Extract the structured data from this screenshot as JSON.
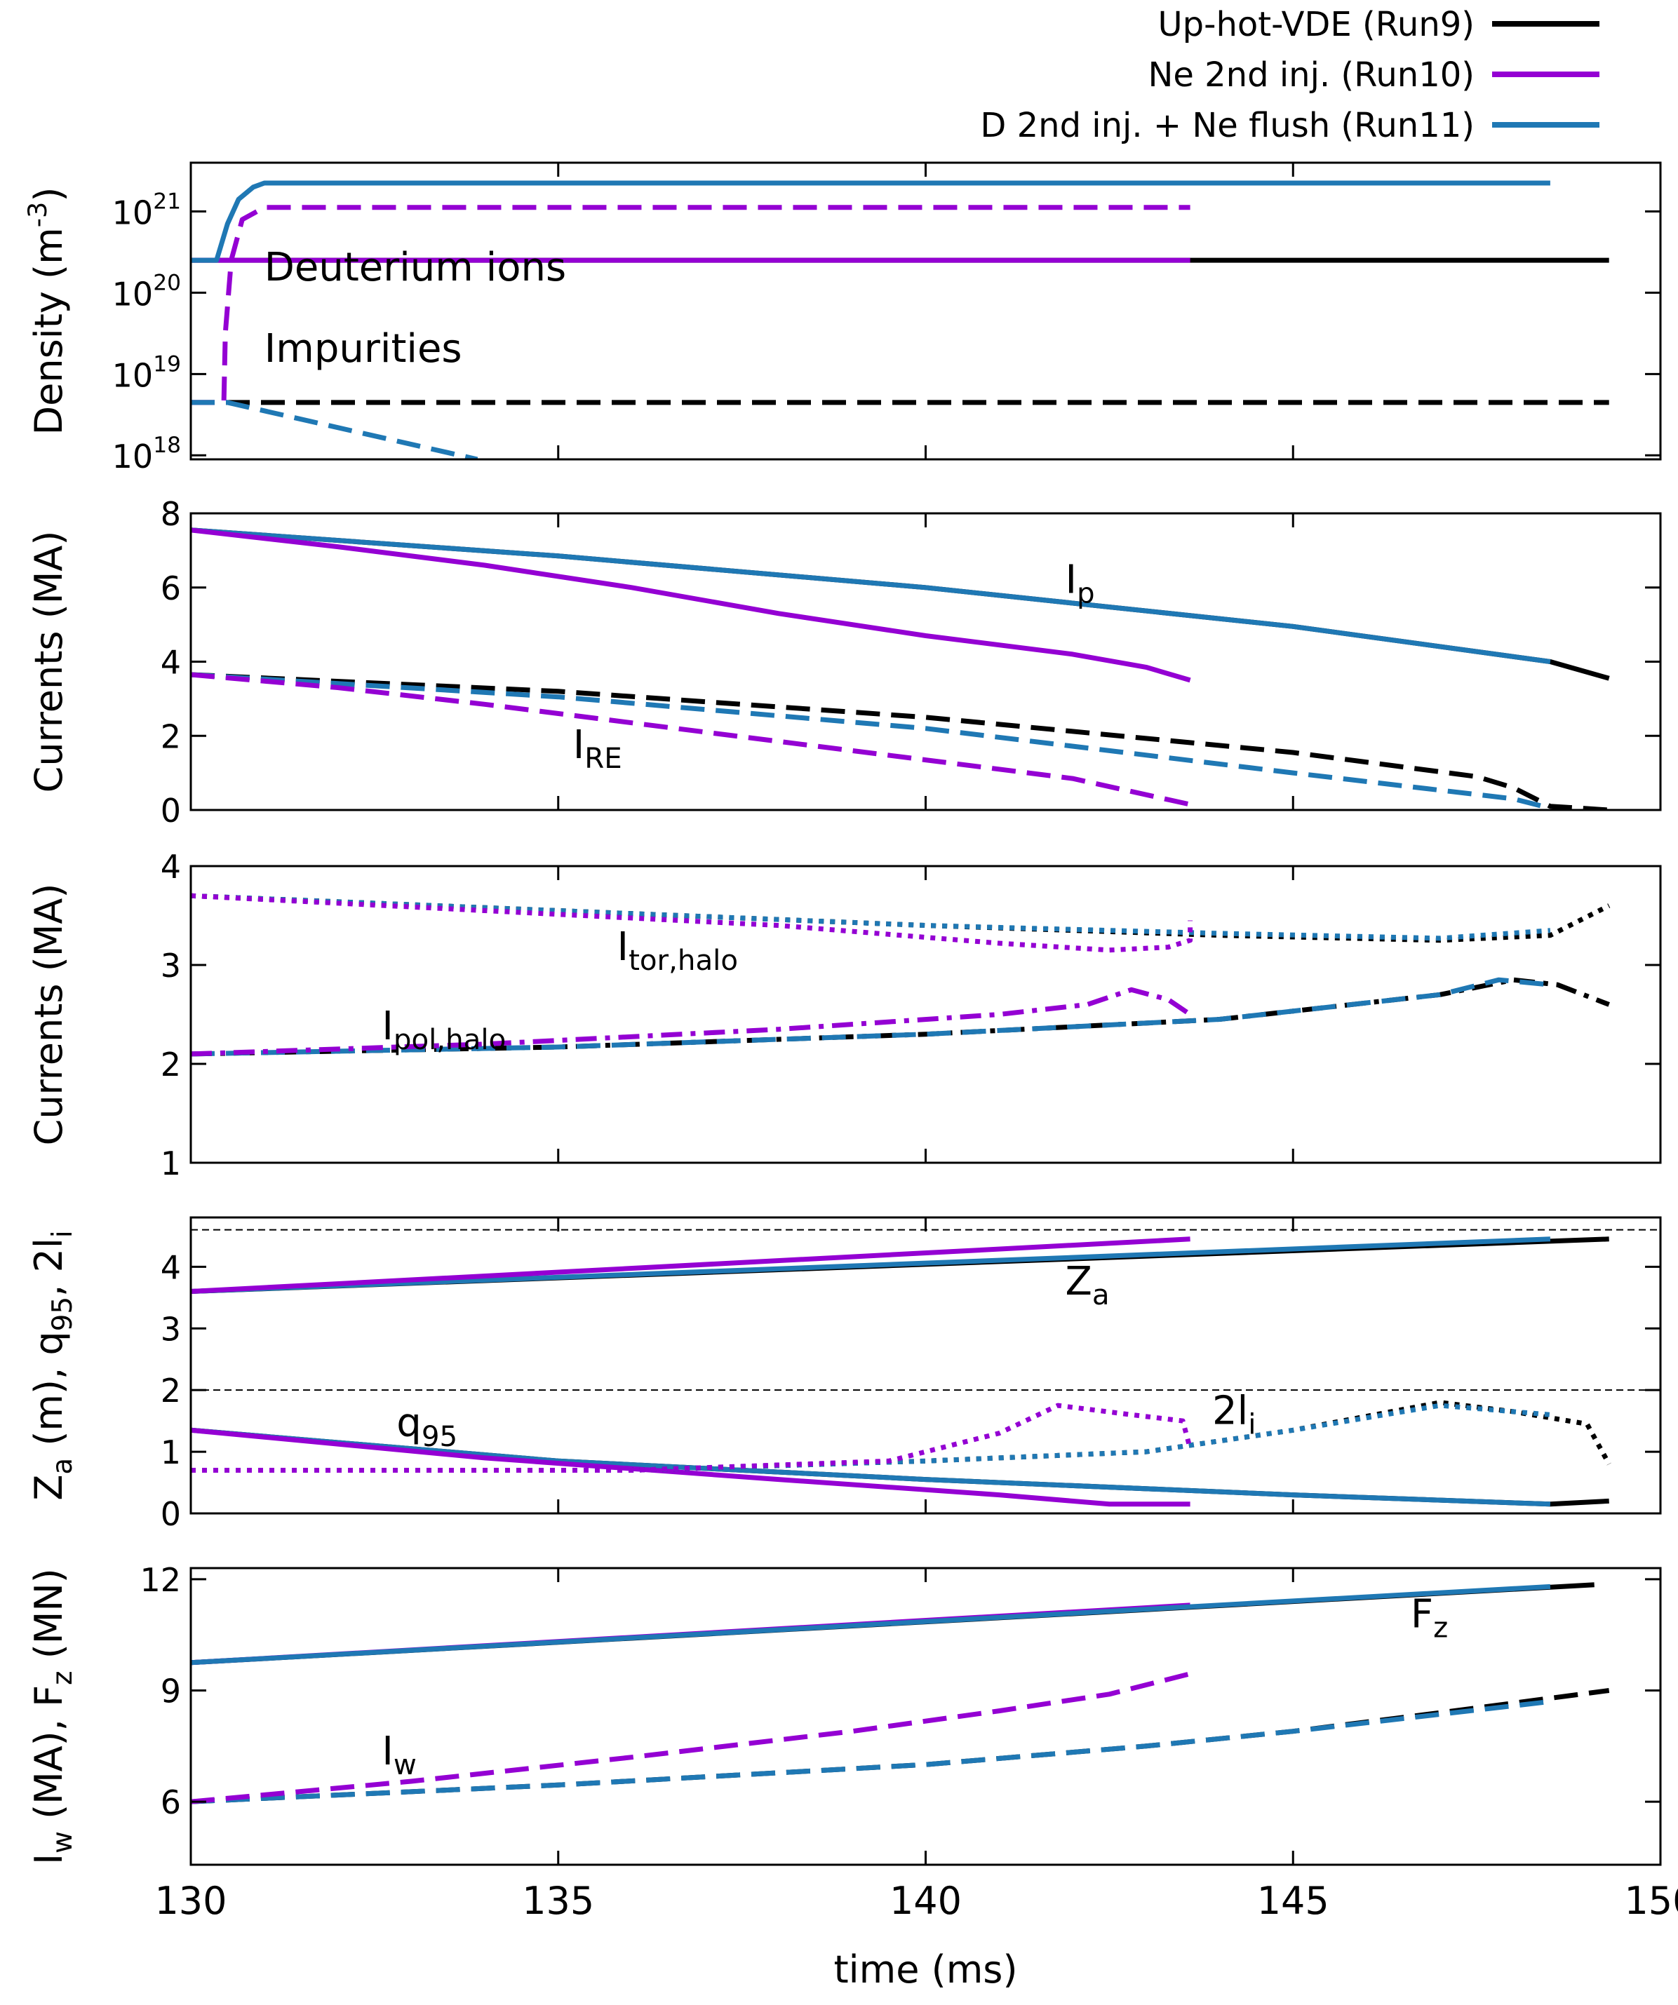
{
  "chart_data": {
    "type": "line",
    "xlabel": "time (ms)",
    "xlim": [
      130,
      150
    ],
    "xticks": [
      130,
      135,
      140,
      145,
      150
    ],
    "colors": {
      "Run9": "#000000",
      "Run10": "#9400d3",
      "Run11": "#1f78b4"
    },
    "legend": {
      "placement": "top-right",
      "entries": [
        {
          "label": "Up-hot-VDE (Run9)",
          "color": "#000000"
        },
        {
          "label": "Ne 2nd inj. (Run10)",
          "color": "#9400d3"
        },
        {
          "label": "D 2nd inj. + Ne flush (Run11)",
          "color": "#1f78b4"
        }
      ]
    },
    "panels": [
      {
        "id": "density",
        "ylabel": "Density (m",
        "ylabel_sup": "-3",
        "ylabel_end": ")",
        "yscale": "log",
        "ylim": [
          17.95,
          21.6
        ],
        "yticks": [
          {
            "v": 18,
            "base": "10",
            "exp": "18"
          },
          {
            "v": 19,
            "base": "10",
            "exp": "19"
          },
          {
            "v": 20,
            "base": "10",
            "exp": "20"
          },
          {
            "v": 21,
            "base": "10",
            "exp": "21"
          }
        ],
        "annotations": [
          {
            "text": "Deuterium ions",
            "x": 131.0,
            "y": 20.15
          },
          {
            "text": "Impurities",
            "x": 131.0,
            "y": 19.15
          }
        ],
        "series": [
          {
            "run": "Run9",
            "style": "solid",
            "x": [
              130,
              149.3
            ],
            "y": [
              20.4,
              20.4
            ]
          },
          {
            "run": "Run9",
            "style": "dashed",
            "x": [
              130,
              149.3
            ],
            "y": [
              18.65,
              18.65
            ]
          },
          {
            "run": "Run10",
            "style": "solid",
            "x": [
              130,
              143.6
            ],
            "y": [
              20.4,
              20.4
            ]
          },
          {
            "run": "Run10",
            "style": "dashed",
            "x": [
              130,
              130.45,
              130.47,
              130.55,
              130.7,
              131.0,
              143.6
            ],
            "y": [
              18.65,
              18.65,
              19.5,
              20.4,
              20.9,
              21.05,
              21.05
            ]
          },
          {
            "run": "Run11",
            "style": "solid",
            "x": [
              130,
              130.35,
              130.5,
              130.65,
              130.85,
              131.0,
              148.5
            ],
            "y": [
              20.4,
              20.4,
              20.85,
              21.15,
              21.3,
              21.35,
              21.35
            ]
          },
          {
            "run": "Run11",
            "style": "dashed",
            "x": [
              130,
              130.5,
              133.9
            ],
            "y": [
              18.65,
              18.65,
              17.95
            ]
          }
        ]
      },
      {
        "id": "currents1",
        "ylabel": "Currents (MA)",
        "ylim": [
          0,
          8
        ],
        "yticks": [
          0,
          2,
          4,
          6,
          8
        ],
        "annotations": [
          {
            "text": "I",
            "sub": "p",
            "x": 141.9,
            "y": 5.85
          },
          {
            "text": "I",
            "sub": "RE",
            "x": 135.2,
            "y": 1.4
          }
        ],
        "series": [
          {
            "run": "Run9",
            "style": "solid",
            "x": [
              130,
              135,
              140,
              145,
              148.5,
              149.3
            ],
            "y": [
              7.55,
              6.85,
              6.0,
              4.95,
              4.0,
              3.55
            ]
          },
          {
            "run": "Run11",
            "style": "solid",
            "x": [
              130,
              135,
              140,
              145,
              148.5
            ],
            "y": [
              7.55,
              6.85,
              6.0,
              4.95,
              4.0
            ]
          },
          {
            "run": "Run10",
            "style": "solid",
            "x": [
              130,
              132,
              134,
              136,
              138,
              140,
              142,
              143,
              143.6
            ],
            "y": [
              7.55,
              7.1,
              6.6,
              6.0,
              5.3,
              4.7,
              4.2,
              3.85,
              3.5
            ]
          },
          {
            "run": "Run9",
            "style": "dashed",
            "x": [
              130,
              135,
              140,
              145,
              147.5,
              148.0,
              148.5,
              149.3
            ],
            "y": [
              3.65,
              3.2,
              2.5,
              1.55,
              0.9,
              0.6,
              0.1,
              0.0
            ]
          },
          {
            "run": "Run11",
            "style": "dashed",
            "x": [
              130,
              135,
              140,
              145,
              148.0,
              148.5
            ],
            "y": [
              3.65,
              3.05,
              2.2,
              1.0,
              0.3,
              0.05
            ]
          },
          {
            "run": "Run10",
            "style": "dashed",
            "x": [
              130,
              132,
              134,
              136,
              138,
              140,
              142,
              142.8,
              143.6
            ],
            "y": [
              3.65,
              3.3,
              2.85,
              2.35,
              1.85,
              1.35,
              0.85,
              0.5,
              0.15
            ]
          }
        ]
      },
      {
        "id": "currents2",
        "ylabel": "Currents (MA)",
        "ylim": [
          1,
          4
        ],
        "yticks": [
          1,
          2,
          3,
          4
        ],
        "annotations": [
          {
            "text": "I",
            "sub": "tor,halo",
            "x": 135.8,
            "y": 3.05
          },
          {
            "text": "I",
            "sub": "pol,halo",
            "x": 132.6,
            "y": 2.25
          }
        ],
        "series": [
          {
            "run": "Run9",
            "style": "dotted",
            "x": [
              130,
              135,
              140,
              144,
              147,
              148.5,
              149.3
            ],
            "y": [
              3.7,
              3.55,
              3.4,
              3.3,
              3.25,
              3.3,
              3.6
            ]
          },
          {
            "run": "Run11",
            "style": "dotted",
            "x": [
              130,
              135,
              140,
              144,
              147,
              148.5
            ],
            "y": [
              3.7,
              3.55,
              3.4,
              3.32,
              3.27,
              3.35
            ]
          },
          {
            "run": "Run10",
            "style": "dotted",
            "x": [
              130,
              134,
              138,
              141,
              142.5,
              143.3,
              143.6,
              143.6
            ],
            "y": [
              3.7,
              3.55,
              3.4,
              3.22,
              3.15,
              3.18,
              3.25,
              3.45
            ]
          },
          {
            "run": "Run9",
            "style": "dashdot",
            "x": [
              130,
              135,
              140,
              144,
              147,
              148.0,
              148.6,
              149.3
            ],
            "y": [
              2.1,
              2.17,
              2.3,
              2.45,
              2.7,
              2.85,
              2.8,
              2.6
            ]
          },
          {
            "run": "Run11",
            "style": "dashed",
            "x": [
              130,
              135,
              140,
              144,
              147,
              147.8,
              148.5
            ],
            "y": [
              2.1,
              2.17,
              2.3,
              2.45,
              2.7,
              2.85,
              2.8
            ]
          },
          {
            "run": "Run10",
            "style": "dashdot",
            "x": [
              130,
              134,
              138,
              141,
              142.2,
              142.8,
              143.3,
              143.6
            ],
            "y": [
              2.1,
              2.2,
              2.35,
              2.5,
              2.6,
              2.75,
              2.65,
              2.5
            ]
          }
        ]
      },
      {
        "id": "za_q95_li",
        "ylabel": "Z",
        "ylabel_sub": "a",
        "ylabel_mid": " (m), q",
        "ylabel_sub2": "95",
        "ylabel_mid2": ", 2l",
        "ylabel_sub3": "i",
        "ylim": [
          0,
          4.8
        ],
        "yticks": [
          0,
          1,
          2,
          3,
          4
        ],
        "reference_lines": [
          4.6,
          2.0
        ],
        "annotations": [
          {
            "text": "Z",
            "sub": "a",
            "x": 141.9,
            "y": 3.55
          },
          {
            "text": "q",
            "sub": "95",
            "x": 132.8,
            "y": 1.25
          },
          {
            "text": "2l",
            "sub": "i",
            "x": 143.9,
            "y": 1.45
          }
        ],
        "series": [
          {
            "run": "Run9",
            "style": "solid",
            "x": [
              130,
              149.3
            ],
            "y": [
              3.6,
              4.45
            ]
          },
          {
            "run": "Run11",
            "style": "solid",
            "x": [
              130,
              148.5
            ],
            "y": [
              3.6,
              4.45
            ]
          },
          {
            "run": "Run10",
            "style": "solid",
            "x": [
              130,
              143.6
            ],
            "y": [
              3.6,
              4.45
            ]
          },
          {
            "run": "Run9",
            "style": "solid",
            "x": [
              130,
              135,
              140,
              145,
              148.5,
              149.3
            ],
            "y": [
              1.35,
              0.85,
              0.55,
              0.3,
              0.15,
              0.2
            ]
          },
          {
            "run": "Run11",
            "style": "solid",
            "x": [
              130,
              135,
              140,
              145,
              148.5
            ],
            "y": [
              1.35,
              0.85,
              0.55,
              0.3,
              0.15
            ]
          },
          {
            "run": "Run10",
            "style": "solid",
            "x": [
              130,
              134,
              138,
              141,
              142.5,
              143.6
            ],
            "y": [
              1.35,
              0.9,
              0.55,
              0.3,
              0.15,
              0.15
            ]
          },
          {
            "run": "Run9",
            "style": "dotted",
            "x": [
              130,
              136,
              140,
              143,
              145,
              147,
              148,
              149,
              149.3
            ],
            "y": [
              0.7,
              0.7,
              0.85,
              1.0,
              1.35,
              1.8,
              1.65,
              1.45,
              0.8
            ]
          },
          {
            "run": "Run11",
            "style": "dotted",
            "x": [
              130,
              136,
              140,
              143,
              145,
              147,
              148,
              148.5
            ],
            "y": [
              0.7,
              0.7,
              0.85,
              1.0,
              1.35,
              1.75,
              1.65,
              1.6
            ]
          },
          {
            "run": "Run10",
            "style": "dotted",
            "x": [
              130,
              136,
              139.5,
              141,
              141.8,
              142.8,
              143.5,
              143.6
            ],
            "y": [
              0.7,
              0.7,
              0.85,
              1.3,
              1.75,
              1.6,
              1.5,
              1.05
            ]
          }
        ]
      },
      {
        "id": "iw_fz",
        "ylabel": "I",
        "ylabel_sub": "w",
        "ylabel_mid": " (MA), F",
        "ylabel_sub2": "z",
        "ylabel_mid2": " (MN)",
        "ylim": [
          4.3,
          12.3
        ],
        "yticks": [
          6,
          9,
          12
        ],
        "annotations": [
          {
            "text": "F",
            "sub": "z",
            "x": 146.6,
            "y": 10.7
          },
          {
            "text": "I",
            "sub": "w",
            "x": 132.6,
            "y": 7.0
          }
        ],
        "series": [
          {
            "run": "Run9",
            "style": "solid",
            "x": [
              130,
              149.1
            ],
            "y": [
              9.75,
              11.85
            ]
          },
          {
            "run": "Run10",
            "style": "solid",
            "x": [
              130,
              143.6
            ],
            "y": [
              9.75,
              11.3
            ]
          },
          {
            "run": "Run11",
            "style": "solid",
            "x": [
              130,
              148.5
            ],
            "y": [
              9.75,
              11.8
            ]
          },
          {
            "run": "Run9",
            "style": "dashed",
            "x": [
              130,
              135,
              140,
              143,
              145,
              147,
              149.3
            ],
            "y": [
              6.0,
              6.45,
              7.0,
              7.5,
              7.9,
              8.4,
              9.0
            ]
          },
          {
            "run": "Run11",
            "style": "dashed",
            "x": [
              130,
              135,
              140,
              143,
              145,
              148.5
            ],
            "y": [
              6.0,
              6.45,
              7.0,
              7.5,
              7.9,
              8.7
            ]
          },
          {
            "run": "Run10",
            "style": "dashed",
            "x": [
              130,
              133,
              136,
              139,
              141,
              142.5,
              143.6
            ],
            "y": [
              6.0,
              6.55,
              7.2,
              7.9,
              8.45,
              8.9,
              9.45
            ]
          }
        ]
      }
    ]
  }
}
